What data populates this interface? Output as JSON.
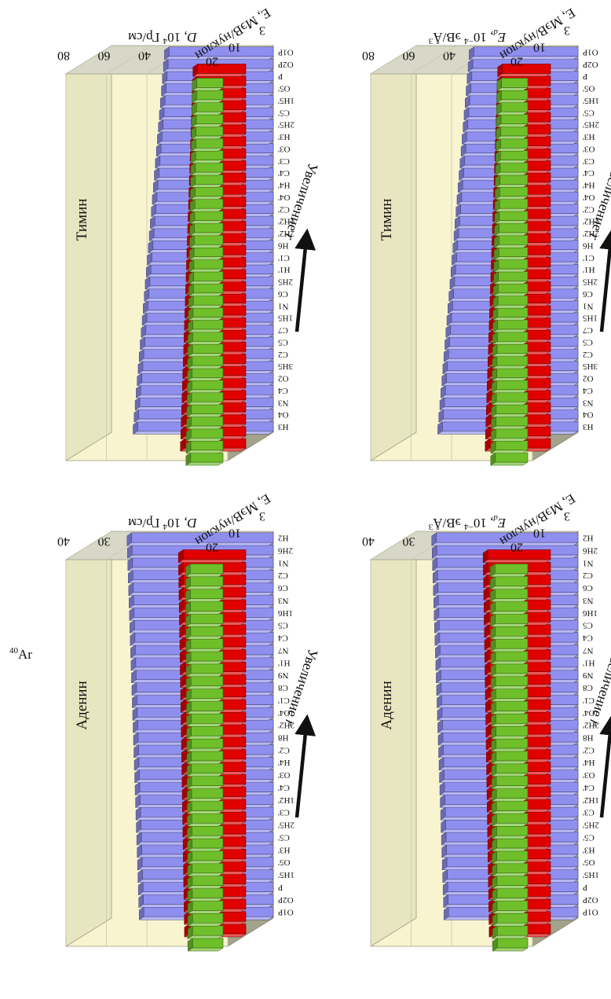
{
  "figure": {
    "isotope_label": "40Ar",
    "isotope_mass": "40",
    "isotope_symbol": "Ar"
  },
  "colors": {
    "energy_3": "#8f8ff0",
    "energy_10": "#e00000",
    "energy_20": "#6fbf2a",
    "back_wall": "#a3a38c",
    "side_wall": "#f7f4cf",
    "floor": "#d8d8c8",
    "grid": "#c8c8b0"
  },
  "chart_data": [
    {
      "type": "bar",
      "position": "top-left",
      "title": "Тимин",
      "ylabel": "D, 10⁴ Гр/см",
      "ylabel_base": "D, 10",
      "ylabel_exp": "4",
      "ylabel_unit": " Гр/см",
      "zlabel": "E, МэВ/нуклон",
      "arrow_label": "Увеличение r",
      "ylim": [
        0,
        80
      ],
      "yticks": [
        "0",
        "20",
        "40",
        "60",
        "80"
      ],
      "categories": [
        "H3",
        "O4",
        "N3",
        "C4",
        "O2",
        "3H5",
        "C2",
        "C5",
        "C7",
        "1H5",
        "N1",
        "C6",
        "2H5",
        "H1'",
        "C1'",
        "H6",
        "2H2'",
        "1H2'",
        "C2'",
        "O4'",
        "H4'",
        "C4'",
        "C3'",
        "O3'",
        "H3'",
        "2H5'",
        "C5'",
        "1H5'",
        "O5'",
        "P",
        "O2P",
        "O1P"
      ],
      "series": [
        {
          "name": "3",
          "values": [
            67,
            66.5,
            66,
            65.5,
            65,
            64.5,
            64,
            63.5,
            63,
            62.5,
            62,
            61.5,
            61,
            60.5,
            60,
            59.5,
            59,
            58.5,
            58,
            57.5,
            57,
            56.5,
            56,
            55.5,
            55,
            54.5,
            54,
            53.5,
            53,
            52.5,
            52,
            51.5
          ]
        },
        {
          "name": "10",
          "values": [
            30,
            29.8,
            29.6,
            29.4,
            29.2,
            29,
            28.8,
            28.6,
            28.4,
            28.2,
            28,
            27.8,
            27.6,
            27.4,
            27.2,
            27,
            26.8,
            26.6,
            26.4,
            26.2,
            26,
            25.8,
            25.6,
            25.4,
            25.2,
            25,
            24.8,
            24.6,
            24.4,
            24.2,
            24,
            23.8
          ]
        },
        {
          "name": "20",
          "values": [
            16,
            15.9,
            15.8,
            15.7,
            15.6,
            15.5,
            15.4,
            15.3,
            15.2,
            15.1,
            15,
            14.9,
            14.8,
            14.7,
            14.6,
            14.5,
            14.4,
            14.3,
            14.2,
            14.1,
            14,
            13.9,
            13.8,
            13.7,
            13.6,
            13.5,
            13.4,
            13.3,
            13.2,
            13.1,
            13,
            12.9
          ]
        }
      ]
    },
    {
      "type": "bar",
      "position": "top-right",
      "title": "Тимин",
      "ylabel": "Ed, 10−4 эВ/Å3",
      "ylabel_base": "E",
      "ylabel_sub": "d",
      "ylabel_mid": ", 10",
      "ylabel_exp": "−4",
      "ylabel_unit": " эВ/Å",
      "ylabel_unit_exp": "3",
      "zlabel": "E, МэВ/нуклон",
      "arrow_label": "Увеличение r",
      "ylim": [
        0,
        80
      ],
      "yticks": [
        "0",
        "20",
        "40",
        "60",
        "80"
      ],
      "categories": [
        "H3",
        "O4",
        "N3",
        "C4",
        "O2",
        "3H5",
        "C2",
        "C5",
        "C7",
        "1H5",
        "N1",
        "C6",
        "2H5",
        "H1'",
        "C1'",
        "H6",
        "2H2'",
        "1H2'",
        "C2'",
        "O4'",
        "H4'",
        "C4'",
        "C3'",
        "O3'",
        "H3'",
        "2H5'",
        "C5'",
        "1H5'",
        "O5'",
        "P",
        "O2P",
        "O1P"
      ],
      "series": [
        {
          "name": "3",
          "values": [
            67,
            66.5,
            66,
            65.5,
            65,
            64.5,
            64,
            63.5,
            63,
            62.5,
            62,
            61.5,
            61,
            60.5,
            60,
            59.5,
            59,
            58.5,
            58,
            57.5,
            57,
            56.5,
            56,
            55.5,
            55,
            54.5,
            54,
            53.5,
            53,
            52.5,
            52,
            51.5
          ]
        },
        {
          "name": "10",
          "values": [
            30,
            29.8,
            29.6,
            29.4,
            29.2,
            29,
            28.8,
            28.6,
            28.4,
            28.2,
            28,
            27.8,
            27.6,
            27.4,
            27.2,
            27,
            26.8,
            26.6,
            26.4,
            26.2,
            26,
            25.8,
            25.6,
            25.4,
            25.2,
            25,
            24.8,
            24.6,
            24.4,
            24.2,
            24,
            23.8
          ]
        },
        {
          "name": "20",
          "values": [
            16,
            15.9,
            15.8,
            15.7,
            15.6,
            15.5,
            15.4,
            15.3,
            15.2,
            15.1,
            15,
            14.9,
            14.8,
            14.7,
            14.6,
            14.5,
            14.4,
            14.3,
            14.2,
            14.1,
            14,
            13.9,
            13.8,
            13.7,
            13.6,
            13.5,
            13.4,
            13.3,
            13.2,
            13.1,
            13,
            12.9
          ]
        }
      ]
    },
    {
      "type": "bar",
      "position": "bottom-left",
      "title": "Аденин",
      "ylabel": "D, 10⁴ Гр/см",
      "ylabel_base": "D, 10",
      "ylabel_exp": "4",
      "ylabel_unit": " Гр/см",
      "zlabel": "E, МэВ/нуклон",
      "arrow_label": "Увеличение r",
      "ylim": [
        0,
        40
      ],
      "yticks": [
        "0",
        "10",
        "20",
        "30",
        "40"
      ],
      "categories": [
        "O1P",
        "O2P",
        "P",
        "1H5'",
        "O5'",
        "H3'",
        "C5'",
        "2H5'",
        "C3'",
        "1H2'",
        "C4'",
        "O3'",
        "H4'",
        "C2'",
        "H8",
        "2H2'",
        "O4'",
        "C1'",
        "C8",
        "N9",
        "H1'",
        "N7",
        "C4",
        "C5",
        "1H6",
        "N3",
        "C6",
        "C2",
        "N1",
        "2H6",
        "H2"
      ],
      "series": [
        {
          "name": "3",
          "values": [
            32,
            32.1,
            32.2,
            32.3,
            32.4,
            32.5,
            32.6,
            32.7,
            32.8,
            32.9,
            33,
            33.1,
            33.2,
            33.3,
            33.4,
            33.5,
            33.6,
            33.7,
            33.8,
            33.9,
            34,
            34.1,
            34.2,
            34.3,
            34.4,
            34.5,
            34.6,
            34.7,
            34.8,
            34.9,
            35
          ]
        },
        {
          "name": "10",
          "values": [
            14,
            14.05,
            14.1,
            14.15,
            14.2,
            14.25,
            14.3,
            14.35,
            14.4,
            14.45,
            14.5,
            14.55,
            14.6,
            14.65,
            14.7,
            14.75,
            14.8,
            14.85,
            14.9,
            14.95,
            15,
            15.05,
            15.1,
            15.15,
            15.2,
            15.25,
            15.3,
            15.35,
            15.4,
            15.45,
            15.5
          ]
        },
        {
          "name": "20",
          "values": [
            7.5,
            7.52,
            7.54,
            7.56,
            7.58,
            7.6,
            7.62,
            7.64,
            7.66,
            7.68,
            7.7,
            7.72,
            7.74,
            7.76,
            7.78,
            7.8,
            7.82,
            7.84,
            7.86,
            7.88,
            7.9,
            7.92,
            7.94,
            7.96,
            7.98,
            8,
            8.02,
            8.04,
            8.06,
            8.08,
            8.1
          ]
        }
      ]
    },
    {
      "type": "bar",
      "position": "bottom-right",
      "title": "Аденин",
      "ylabel": "Ed, 10−4 эВ/Å3",
      "ylabel_base": "E",
      "ylabel_sub": "d",
      "ylabel_mid": ", 10",
      "ylabel_exp": "−4",
      "ylabel_unit": " эВ/Å",
      "ylabel_unit_exp": "3",
      "zlabel": "E, МэВ/нуклон",
      "arrow_label": "Увеличение r",
      "ylim": [
        0,
        40
      ],
      "yticks": [
        "0",
        "10",
        "20",
        "30",
        "40"
      ],
      "categories": [
        "O1P",
        "O2P",
        "P",
        "1H5'",
        "O5'",
        "H3'",
        "C5'",
        "2H5'",
        "C3'",
        "1H2'",
        "C4'",
        "O3'",
        "H4'",
        "C2'",
        "H8",
        "2H2'",
        "O4'",
        "C1'",
        "C8",
        "N9",
        "H1'",
        "N7",
        "C4",
        "C5",
        "1H6",
        "N3",
        "C6",
        "C2",
        "N1",
        "2H6",
        "H2"
      ],
      "series": [
        {
          "name": "3",
          "values": [
            32,
            32.1,
            32.2,
            32.3,
            32.4,
            32.5,
            32.6,
            32.7,
            32.8,
            32.9,
            33,
            33.1,
            33.2,
            33.3,
            33.4,
            33.5,
            33.6,
            33.7,
            33.8,
            33.9,
            34,
            34.1,
            34.2,
            34.3,
            34.4,
            34.5,
            34.6,
            34.7,
            34.8,
            34.9,
            35
          ]
        },
        {
          "name": "10",
          "values": [
            14,
            14.05,
            14.1,
            14.15,
            14.2,
            14.25,
            14.3,
            14.35,
            14.4,
            14.45,
            14.5,
            14.55,
            14.6,
            14.65,
            14.7,
            14.75,
            14.8,
            14.85,
            14.9,
            14.95,
            15,
            15.05,
            15.1,
            15.15,
            15.2,
            15.25,
            15.3,
            15.35,
            15.4,
            15.45,
            15.5
          ]
        },
        {
          "name": "20",
          "values": [
            7.5,
            7.52,
            7.54,
            7.56,
            7.58,
            7.6,
            7.62,
            7.64,
            7.66,
            7.68,
            7.7,
            7.72,
            7.74,
            7.76,
            7.78,
            7.8,
            7.82,
            7.84,
            7.86,
            7.88,
            7.9,
            7.92,
            7.94,
            7.96,
            7.98,
            8,
            8.02,
            8.04,
            8.06,
            8.08,
            8.1
          ]
        }
      ]
    }
  ]
}
